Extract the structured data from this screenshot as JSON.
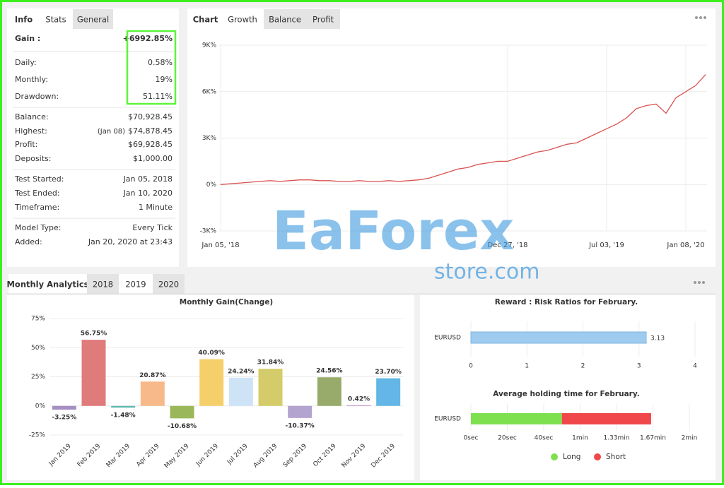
{
  "info_tabs": [
    "Info",
    "Stats",
    "General"
  ],
  "info_groups": [
    [
      {
        "label": "Gain :",
        "value": "+6992.85%",
        "color": "#2e9e3e"
      },
      {
        "label": "Daily:",
        "value": "0.58%"
      },
      {
        "label": "Monthly:",
        "value": "19%"
      },
      {
        "label": "Drawdown:",
        "value": "51.11%"
      }
    ],
    [
      {
        "label": "Balance:",
        "value": "$70,928.45"
      },
      {
        "label": "Highest:",
        "note": "(Jan 08)",
        "value": "$74,878.45"
      },
      {
        "label": "Profit:",
        "value": "$69,928.45",
        "color": "#2e9e3e"
      },
      {
        "label": "Deposits:",
        "value": "$1,000.00"
      }
    ],
    [
      {
        "label": "Test Started:",
        "value": "Jan 05, 2018"
      },
      {
        "label": "Test Ended:",
        "value": "Jan 10, 2020"
      },
      {
        "label": "Timeframe:",
        "value": "1 Minute"
      }
    ],
    [
      {
        "label": "Model Type:",
        "value": "Every Tick"
      },
      {
        "label": "Added:",
        "value": "Jan 20, 2020 at 23:43"
      }
    ]
  ],
  "chart_tabs": [
    "Chart",
    "Growth",
    "Balance",
    "Profit"
  ],
  "analytics_tabs": [
    "Monthly Analytics",
    "2018",
    "2019",
    "2020"
  ],
  "watermark": {
    "brand": "EaForex",
    "domain": "store.com"
  },
  "chart_data": [
    {
      "type": "line",
      "categories": [
        "Jan 05, '18",
        null,
        null,
        null,
        null,
        null,
        null,
        null,
        null,
        null,
        null,
        null,
        null,
        null,
        null,
        null,
        null,
        null,
        null,
        null,
        null,
        null,
        null,
        null,
        null,
        null,
        null,
        null,
        null,
        "Dec 27, '18",
        null,
        null,
        null,
        null,
        null,
        null,
        null,
        null,
        null,
        "Jul 03, '19",
        null,
        null,
        null,
        null,
        null,
        null,
        null,
        "Jan 08, '20",
        null,
        null
      ],
      "values": [
        0,
        50,
        100,
        150,
        200,
        250,
        200,
        250,
        300,
        300,
        250,
        250,
        200,
        200,
        250,
        200,
        200,
        250,
        200,
        250,
        300,
        400,
        600,
        800,
        1000,
        1100,
        1300,
        1400,
        1500,
        1500,
        1700,
        1900,
        2100,
        2200,
        2400,
        2600,
        2700,
        3000,
        3300,
        3600,
        3900,
        4300,
        4900,
        5100,
        5200,
        4600,
        5600,
        6000,
        6400,
        7100
      ],
      "color": "#d9534f",
      "ylim": [
        -3000,
        9000
      ],
      "yticks": [
        {
          "value": 9000,
          "label": "9K%"
        },
        {
          "value": 6000,
          "label": "6K%"
        },
        {
          "value": 3000,
          "label": "3K%"
        },
        {
          "value": 0,
          "label": "0%"
        },
        {
          "value": -3000,
          "label": "-3K%"
        }
      ],
      "grid": true
    },
    {
      "type": "bar",
      "title": "Monthly Gain(Change)",
      "categories": [
        "Jan 2019",
        "Feb 2019",
        "Mar 2019",
        "Apr 2019",
        "May 2019",
        "Jun 2019",
        "Jul 2019",
        "Aug 2019",
        "Sep 2019",
        "Oct 2019",
        "Nov 2019",
        "Dec 2019"
      ],
      "values": [
        -3.25,
        56.75,
        -1.48,
        20.87,
        -10.68,
        40.09,
        24.24,
        31.84,
        -10.37,
        24.56,
        0.42,
        23.7
      ],
      "value_labels": [
        "-3.25%",
        "56.75%",
        "-1.48%",
        "20.87%",
        "-10.68%",
        "40.09%",
        "24.24%",
        "31.84%",
        "-10.37%",
        "24.56%",
        "0.42%",
        "23.70%"
      ],
      "colors": [
        "#a68fc4",
        "#e07b7b",
        "#5fb8b0",
        "#f8b98a",
        "#9ab85a",
        "#f5d06a",
        "#cfe3f7",
        "#d4cc6a",
        "#b3a3cf",
        "#98ab6a",
        "#c59ac7",
        "#63b6e5"
      ],
      "ylim": [
        -25,
        75
      ],
      "yticks": [
        {
          "value": 75,
          "label": "75%"
        },
        {
          "value": 50,
          "label": "50%"
        },
        {
          "value": 25,
          "label": "25%"
        },
        {
          "value": 0,
          "label": "0%"
        },
        {
          "value": -25,
          "label": "-25%"
        }
      ],
      "grid": true
    },
    {
      "type": "hbar",
      "title": "Reward : Risk Ratios for February.",
      "categories": [
        "EURUSD"
      ],
      "values": [
        3.13
      ],
      "color": "#9fcbee",
      "xlim": [
        0,
        4
      ],
      "xticks": [
        0,
        1,
        2,
        3,
        4
      ],
      "grid": true
    },
    {
      "type": "stacked_hbar",
      "title": "Average holding time for February.",
      "categories": [
        "EURUSD"
      ],
      "series": [
        {
          "name": "Long",
          "color": "#7fe04f",
          "values": [
            50
          ]
        },
        {
          "name": "Short",
          "color": "#f0474a",
          "values": [
            49
          ]
        }
      ],
      "xlim": [
        0,
        120
      ],
      "xticks": [
        {
          "value": 0,
          "label": "0sec"
        },
        {
          "value": 20,
          "label": "20sec"
        },
        {
          "value": 40,
          "label": "40sec"
        },
        {
          "value": 60,
          "label": "1min"
        },
        {
          "value": 80,
          "label": "1.33min"
        },
        {
          "value": 100,
          "label": "1.67min"
        },
        {
          "value": 120,
          "label": "2min"
        }
      ],
      "grid": true,
      "legend": "bottom"
    }
  ]
}
